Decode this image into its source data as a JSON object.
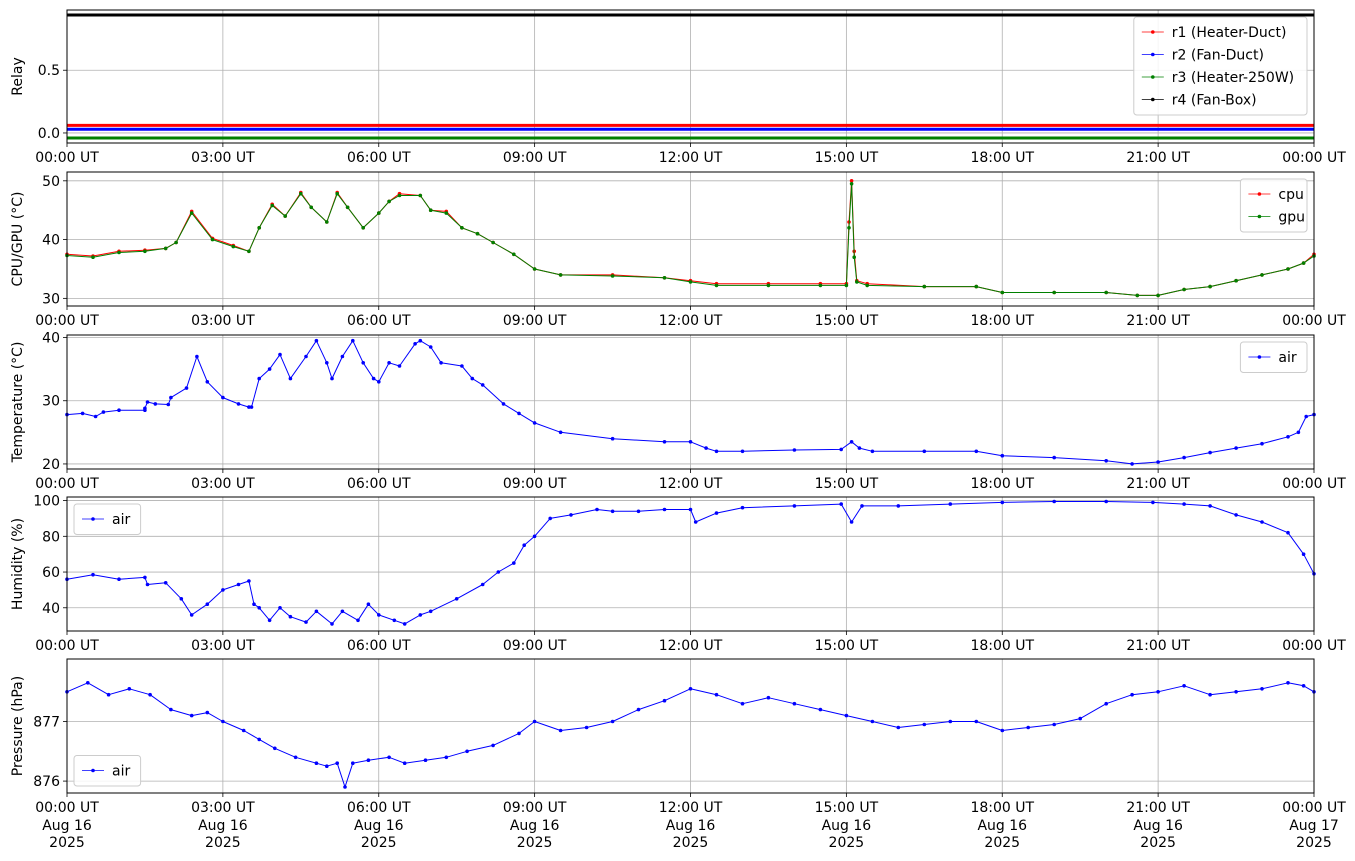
{
  "colors": {
    "r1": "#ff0000",
    "r2": "#0000ff",
    "r3": "#008000",
    "r4": "#000000",
    "cpu": "#ff0000",
    "gpu": "#008000",
    "air": "#0000ff",
    "grid": "#b0b0b0"
  },
  "x_ticks": [
    "00:00 UT",
    "03:00 UT",
    "06:00 UT",
    "09:00 UT",
    "12:00 UT",
    "15:00 UT",
    "18:00 UT",
    "21:00 UT",
    "00:00 UT"
  ],
  "x_ticks_bottom_dates": [
    [
      "Aug 16",
      "2025"
    ],
    [
      "Aug 16",
      "2025"
    ],
    [
      "Aug 16",
      "2025"
    ],
    [
      "Aug 16",
      "2025"
    ],
    [
      "Aug 16",
      "2025"
    ],
    [
      "Aug 16",
      "2025"
    ],
    [
      "Aug 16",
      "2025"
    ],
    [
      "Aug 16",
      "2025"
    ],
    [
      "Aug 17",
      "2025"
    ]
  ],
  "chart_data": [
    {
      "type": "line",
      "ylabel": "Relay",
      "ylim": [
        -0.08,
        0.98
      ],
      "yticks": [
        0.0,
        0.5
      ],
      "ytick_labels": [
        "0.0",
        "0.5"
      ],
      "xlim": [
        0,
        24
      ],
      "grid": true,
      "legend_position": "upper-right",
      "series": [
        {
          "name": "r1 (Heater-Duct)",
          "color": "#ff0000",
          "x": [
            0,
            24
          ],
          "y": [
            0.06,
            0.06
          ]
        },
        {
          "name": "r2 (Fan-Duct)",
          "color": "#0000ff",
          "x": [
            0,
            24
          ],
          "y": [
            0.03,
            0.03
          ]
        },
        {
          "name": "r3 (Heater-250W)",
          "color": "#008000",
          "x": [
            0,
            24
          ],
          "y": [
            -0.04,
            -0.04
          ]
        },
        {
          "name": "r4 (Fan-Box)",
          "color": "#000000",
          "x": [
            0,
            24
          ],
          "y": [
            0.94,
            0.94
          ]
        }
      ]
    },
    {
      "type": "line",
      "ylabel": "CPU/GPU (°C)",
      "ylim": [
        28.7,
        51.5
      ],
      "yticks": [
        30,
        40,
        50
      ],
      "ytick_labels": [
        "30",
        "40",
        "50"
      ],
      "xlim": [
        0,
        24
      ],
      "grid": true,
      "legend_position": "upper-right",
      "series": [
        {
          "name": "cpu",
          "color": "#ff0000",
          "x": [
            0,
            0.5,
            1,
            1.5,
            1.9,
            2.1,
            2.4,
            2.8,
            3.2,
            3.5,
            3.7,
            3.95,
            4.2,
            4.5,
            4.7,
            5.0,
            5.2,
            5.4,
            5.7,
            6.0,
            6.2,
            6.4,
            6.8,
            7.0,
            7.3,
            7.6,
            7.9,
            8.2,
            8.6,
            9.0,
            9.5,
            10.5,
            11.5,
            12.0,
            12.5,
            13.5,
            14.5,
            15.0,
            15.05,
            15.1,
            15.15,
            15.2,
            15.4,
            16.5,
            17.5,
            18.0,
            19.0,
            20.0,
            20.6,
            21.0,
            21.5,
            22.0,
            22.5,
            23.0,
            23.5,
            23.8,
            24.0
          ],
          "y": [
            37.5,
            37.2,
            38,
            38.2,
            38.5,
            39.5,
            44.8,
            40.2,
            39,
            38,
            42,
            46,
            44,
            48,
            45.5,
            43,
            48,
            45.5,
            42,
            44.5,
            46.5,
            47.8,
            47.5,
            45,
            44.8,
            42,
            41,
            39.5,
            37.5,
            35,
            34,
            34,
            33.5,
            33,
            32.5,
            32.5,
            32.5,
            32.5,
            43,
            50,
            38,
            33,
            32.5,
            32,
            32,
            31,
            31,
            31,
            30.5,
            30.5,
            31.5,
            32,
            33,
            34,
            35,
            36,
            37.5
          ]
        },
        {
          "name": "gpu",
          "color": "#008000",
          "x": [
            0,
            0.5,
            1,
            1.5,
            1.9,
            2.1,
            2.4,
            2.8,
            3.2,
            3.5,
            3.7,
            3.95,
            4.2,
            4.5,
            4.7,
            5.0,
            5.2,
            5.4,
            5.7,
            6.0,
            6.2,
            6.4,
            6.8,
            7.0,
            7.3,
            7.6,
            7.9,
            8.2,
            8.6,
            9.0,
            9.5,
            10.5,
            11.5,
            12.0,
            12.5,
            13.5,
            14.5,
            15.0,
            15.05,
            15.1,
            15.15,
            15.2,
            15.4,
            16.5,
            17.5,
            18.0,
            19.0,
            20.0,
            20.6,
            21.0,
            21.5,
            22.0,
            22.5,
            23.0,
            23.5,
            23.8,
            24.0
          ],
          "y": [
            37.3,
            37,
            37.8,
            38,
            38.5,
            39.5,
            44.5,
            40,
            38.8,
            38,
            42,
            45.8,
            44,
            47.8,
            45.5,
            43,
            47.8,
            45.5,
            42,
            44.5,
            46.5,
            47.5,
            47.5,
            45,
            44.5,
            42,
            41,
            39.5,
            37.5,
            35,
            34,
            33.8,
            33.5,
            32.8,
            32.2,
            32.2,
            32.2,
            32.2,
            42,
            49.5,
            37,
            32.8,
            32.2,
            32,
            32,
            31,
            31,
            31,
            30.5,
            30.5,
            31.5,
            32,
            33,
            34,
            35,
            36,
            37.2
          ]
        }
      ]
    },
    {
      "type": "line",
      "ylabel": "Temperature (°C)",
      "ylim": [
        19.2,
        40.4
      ],
      "yticks": [
        20,
        30,
        40
      ],
      "ytick_labels": [
        "20",
        "30",
        "40"
      ],
      "xlim": [
        0,
        24
      ],
      "grid": true,
      "legend_position": "upper-right",
      "series": [
        {
          "name": "air",
          "color": "#0000ff",
          "x": [
            0,
            0.3,
            0.55,
            0.7,
            1.0,
            1.5,
            1.5,
            1.55,
            1.7,
            1.95,
            2.0,
            2.3,
            2.5,
            2.7,
            3.0,
            3.3,
            3.5,
            3.55,
            3.7,
            3.9,
            4.1,
            4.3,
            4.6,
            4.8,
            5.0,
            5.1,
            5.3,
            5.5,
            5.7,
            5.9,
            6.0,
            6.2,
            6.4,
            6.7,
            6.8,
            7.0,
            7.2,
            7.6,
            7.8,
            8.0,
            8.4,
            8.7,
            9.0,
            9.5,
            10.5,
            11.5,
            12.0,
            12.3,
            12.5,
            13.0,
            14.0,
            14.9,
            15.1,
            15.25,
            15.5,
            16.5,
            17.5,
            18.0,
            19.0,
            20.0,
            20.5,
            21.0,
            21.5,
            22.0,
            22.5,
            23.0,
            23.5,
            23.7,
            23.85,
            24.0
          ],
          "y": [
            27.8,
            28,
            27.5,
            28.2,
            28.5,
            28.5,
            28.8,
            29.8,
            29.5,
            29.4,
            30.5,
            32,
            37,
            33,
            30.5,
            29.5,
            29,
            29,
            33.5,
            35,
            37.3,
            33.5,
            37,
            39.5,
            36,
            33.5,
            37,
            39.5,
            36,
            33.5,
            33,
            36,
            35.5,
            39,
            39.5,
            38.5,
            36,
            35.5,
            33.5,
            32.5,
            29.5,
            28,
            26.5,
            25,
            24,
            23.5,
            23.5,
            22.5,
            22,
            22,
            22.2,
            22.3,
            23.5,
            22.5,
            22,
            22,
            22,
            21.3,
            21,
            20.5,
            20,
            20.3,
            21,
            21.8,
            22.5,
            23.2,
            24.3,
            25,
            27.5,
            27.8
          ]
        }
      ]
    },
    {
      "type": "line",
      "ylabel": "Humidity (%)",
      "ylim": [
        27,
        102
      ],
      "yticks": [
        40,
        60,
        80,
        100
      ],
      "ytick_labels": [
        "40",
        "60",
        "80",
        "100"
      ],
      "xlim": [
        0,
        24
      ],
      "grid": true,
      "legend_position": "upper-left",
      "series": [
        {
          "name": "air",
          "color": "#0000ff",
          "x": [
            0,
            0.5,
            1.0,
            1.5,
            1.55,
            1.9,
            2.2,
            2.4,
            2.7,
            3.0,
            3.3,
            3.5,
            3.6,
            3.7,
            3.9,
            4.1,
            4.3,
            4.6,
            4.8,
            5.1,
            5.3,
            5.6,
            5.8,
            6.0,
            6.3,
            6.5,
            6.8,
            7.0,
            7.5,
            8.0,
            8.3,
            8.6,
            8.8,
            9.0,
            9.3,
            9.7,
            10.2,
            10.5,
            11.0,
            11.5,
            12.0,
            12.1,
            12.5,
            13.0,
            14.0,
            14.9,
            15.1,
            15.3,
            16.0,
            17.0,
            18.0,
            19.0,
            20.0,
            20.9,
            21.5,
            22.0,
            22.5,
            23.0,
            23.5,
            23.8,
            24.0
          ],
          "y": [
            56,
            58.5,
            56,
            57,
            53,
            54,
            45,
            36,
            42,
            50,
            53,
            55,
            42,
            40,
            33,
            40,
            35,
            32,
            38,
            31,
            38,
            33,
            42,
            36,
            33,
            31,
            36,
            38,
            45,
            53,
            60,
            65,
            75,
            80,
            90,
            92,
            95,
            94,
            94,
            95,
            95,
            88,
            93,
            96,
            97,
            98,
            88,
            97,
            97,
            98,
            99,
            99.5,
            99.5,
            99,
            98,
            97,
            92,
            88,
            82,
            70,
            59
          ]
        }
      ]
    },
    {
      "type": "line",
      "ylabel": "Pressure (hPa)",
      "ylim": [
        875.8,
        878.05
      ],
      "yticks": [
        876,
        877
      ],
      "ytick_labels": [
        "876",
        "877"
      ],
      "xlim": [
        0,
        24
      ],
      "grid": true,
      "legend_position": "lower-left",
      "series": [
        {
          "name": "air",
          "color": "#0000ff",
          "x": [
            0,
            0.4,
            0.8,
            1.2,
            1.6,
            2.0,
            2.4,
            2.7,
            3.0,
            3.4,
            3.7,
            4.0,
            4.4,
            4.8,
            5.0,
            5.2,
            5.35,
            5.5,
            5.8,
            6.2,
            6.5,
            6.9,
            7.3,
            7.7,
            8.2,
            8.7,
            9.0,
            9.5,
            10.0,
            10.5,
            11.0,
            11.5,
            12.0,
            12.5,
            13.0,
            13.5,
            14.0,
            14.5,
            15.0,
            15.5,
            16.0,
            16.5,
            17.0,
            17.5,
            18.0,
            18.5,
            19.0,
            19.5,
            20.0,
            20.5,
            21.0,
            21.5,
            22.0,
            22.5,
            23.0,
            23.5,
            23.8,
            24.0
          ],
          "y": [
            877.5,
            877.65,
            877.45,
            877.55,
            877.45,
            877.2,
            877.1,
            877.15,
            877.0,
            876.85,
            876.7,
            876.55,
            876.4,
            876.3,
            876.25,
            876.3,
            875.9,
            876.3,
            876.35,
            876.4,
            876.3,
            876.35,
            876.4,
            876.5,
            876.6,
            876.8,
            877.0,
            876.85,
            876.9,
            877.0,
            877.2,
            877.35,
            877.55,
            877.45,
            877.3,
            877.4,
            877.3,
            877.2,
            877.1,
            877.0,
            876.9,
            876.95,
            877.0,
            877.0,
            876.85,
            876.9,
            876.95,
            877.05,
            877.3,
            877.45,
            877.5,
            877.6,
            877.45,
            877.5,
            877.55,
            877.65,
            877.6,
            877.5
          ]
        }
      ]
    }
  ]
}
